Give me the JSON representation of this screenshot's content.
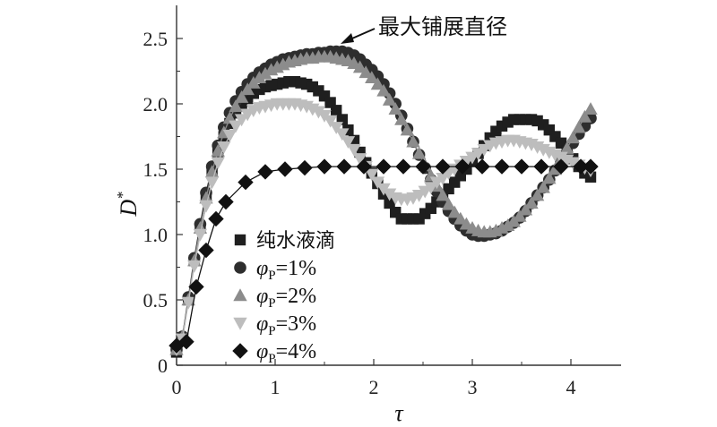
{
  "chart_data": {
    "type": "scatter",
    "xlabel": "τ",
    "ylabel_main": "D",
    "ylabel_sup": "*",
    "xlim": [
      0,
      4.5
    ],
    "ylim": [
      0,
      2.75
    ],
    "xticks": [
      "0",
      "1",
      "2",
      "3",
      "4"
    ],
    "yticks": [
      "0",
      "0.5",
      "1.0",
      "1.5",
      "2.0",
      "2.5"
    ],
    "grid": false,
    "legend_position": "lower-left",
    "annotation": "最大铺展直径",
    "series": [
      {
        "name": "纯水液滴",
        "marker": "square",
        "color": "#1f1f1f",
        "x": [
          0.0,
          0.06,
          0.12,
          0.18,
          0.24,
          0.3,
          0.36,
          0.42,
          0.48,
          0.54,
          0.6,
          0.66,
          0.72,
          0.78,
          0.84,
          0.9,
          0.96,
          1.02,
          1.08,
          1.14,
          1.2,
          1.26,
          1.32,
          1.38,
          1.44,
          1.5,
          1.56,
          1.62,
          1.68,
          1.74,
          1.8,
          1.86,
          1.92,
          1.98,
          2.04,
          2.1,
          2.16,
          2.22,
          2.28,
          2.34,
          2.4,
          2.46,
          2.52,
          2.58,
          2.64,
          2.7,
          2.76,
          2.82,
          2.88,
          2.94,
          3.0,
          3.06,
          3.12,
          3.18,
          3.24,
          3.3,
          3.36,
          3.42,
          3.48,
          3.54,
          3.6,
          3.66,
          3.72,
          3.78,
          3.84,
          3.9,
          3.96,
          4.02,
          4.08,
          4.14,
          4.2
        ],
        "y": [
          0.1,
          0.2,
          0.5,
          0.8,
          1.05,
          1.28,
          1.48,
          1.63,
          1.75,
          1.85,
          1.93,
          1.99,
          2.04,
          2.08,
          2.11,
          2.13,
          2.14,
          2.15,
          2.16,
          2.17,
          2.17,
          2.16,
          2.15,
          2.13,
          2.1,
          2.06,
          2.01,
          1.95,
          1.88,
          1.8,
          1.72,
          1.63,
          1.55,
          1.47,
          1.39,
          1.31,
          1.24,
          1.17,
          1.12,
          1.12,
          1.12,
          1.12,
          1.16,
          1.2,
          1.25,
          1.3,
          1.35,
          1.4,
          1.45,
          1.5,
          1.56,
          1.62,
          1.68,
          1.74,
          1.79,
          1.83,
          1.86,
          1.88,
          1.88,
          1.88,
          1.88,
          1.87,
          1.84,
          1.8,
          1.75,
          1.7,
          1.64,
          1.58,
          1.52,
          1.47,
          1.44
        ]
      },
      {
        "name": "φP=1%",
        "marker": "circle",
        "color": "#2e2e2e",
        "x": [
          0.0,
          0.06,
          0.12,
          0.18,
          0.24,
          0.3,
          0.36,
          0.42,
          0.48,
          0.54,
          0.6,
          0.66,
          0.72,
          0.78,
          0.84,
          0.9,
          0.96,
          1.02,
          1.08,
          1.14,
          1.2,
          1.26,
          1.32,
          1.38,
          1.44,
          1.5,
          1.56,
          1.62,
          1.68,
          1.74,
          1.8,
          1.86,
          1.92,
          1.98,
          2.04,
          2.1,
          2.16,
          2.22,
          2.28,
          2.34,
          2.4,
          2.46,
          2.52,
          2.58,
          2.64,
          2.7,
          2.76,
          2.82,
          2.88,
          2.94,
          3.0,
          3.06,
          3.12,
          3.18,
          3.24,
          3.3,
          3.36,
          3.42,
          3.48,
          3.54,
          3.6,
          3.66,
          3.72,
          3.78,
          3.84,
          3.9,
          3.96,
          4.02,
          4.08,
          4.14,
          4.2
        ],
        "y": [
          0.12,
          0.22,
          0.52,
          0.82,
          1.08,
          1.32,
          1.52,
          1.68,
          1.82,
          1.93,
          2.02,
          2.09,
          2.15,
          2.2,
          2.24,
          2.27,
          2.3,
          2.32,
          2.34,
          2.35,
          2.36,
          2.37,
          2.38,
          2.38,
          2.39,
          2.39,
          2.4,
          2.4,
          2.4,
          2.39,
          2.37,
          2.34,
          2.3,
          2.26,
          2.21,
          2.15,
          2.08,
          2.0,
          1.91,
          1.81,
          1.71,
          1.61,
          1.51,
          1.42,
          1.33,
          1.25,
          1.18,
          1.12,
          1.07,
          1.03,
          1.0,
          0.99,
          0.99,
          1.0,
          1.01,
          1.03,
          1.06,
          1.09,
          1.13,
          1.18,
          1.24,
          1.3,
          1.36,
          1.42,
          1.49,
          1.56,
          1.63,
          1.7,
          1.77,
          1.83,
          1.89
        ]
      },
      {
        "name": "φP=2%",
        "marker": "triangle-up",
        "color": "#8c8c8c",
        "x": [
          0.0,
          0.06,
          0.12,
          0.18,
          0.24,
          0.3,
          0.36,
          0.42,
          0.48,
          0.54,
          0.6,
          0.66,
          0.72,
          0.78,
          0.84,
          0.9,
          0.96,
          1.02,
          1.08,
          1.14,
          1.2,
          1.26,
          1.32,
          1.38,
          1.44,
          1.5,
          1.56,
          1.62,
          1.68,
          1.74,
          1.8,
          1.86,
          1.92,
          1.98,
          2.04,
          2.1,
          2.16,
          2.22,
          2.28,
          2.34,
          2.4,
          2.46,
          2.52,
          2.58,
          2.64,
          2.7,
          2.76,
          2.82,
          2.88,
          2.94,
          3.0,
          3.06,
          3.12,
          3.18,
          3.24,
          3.3,
          3.36,
          3.42,
          3.48,
          3.54,
          3.6,
          3.66,
          3.72,
          3.78,
          3.84,
          3.9,
          3.96,
          4.02,
          4.08,
          4.14,
          4.2
        ],
        "y": [
          0.12,
          0.22,
          0.5,
          0.8,
          1.05,
          1.28,
          1.48,
          1.64,
          1.78,
          1.89,
          1.98,
          2.05,
          2.11,
          2.16,
          2.2,
          2.23,
          2.26,
          2.28,
          2.3,
          2.32,
          2.33,
          2.34,
          2.35,
          2.35,
          2.36,
          2.36,
          2.36,
          2.35,
          2.34,
          2.33,
          2.31,
          2.28,
          2.24,
          2.2,
          2.15,
          2.1,
          2.03,
          1.96,
          1.88,
          1.8,
          1.71,
          1.62,
          1.53,
          1.45,
          1.37,
          1.3,
          1.23,
          1.17,
          1.12,
          1.08,
          1.05,
          1.03,
          1.02,
          1.02,
          1.03,
          1.05,
          1.07,
          1.1,
          1.14,
          1.19,
          1.24,
          1.3,
          1.36,
          1.43,
          1.5,
          1.58,
          1.66,
          1.74,
          1.82,
          1.9,
          1.96
        ]
      },
      {
        "name": "φP=3%",
        "marker": "triangle-down",
        "color": "#bdbdbd",
        "x": [
          0.0,
          0.06,
          0.12,
          0.18,
          0.24,
          0.3,
          0.36,
          0.42,
          0.48,
          0.54,
          0.6,
          0.66,
          0.72,
          0.78,
          0.84,
          0.9,
          0.96,
          1.02,
          1.08,
          1.14,
          1.2,
          1.26,
          1.32,
          1.38,
          1.44,
          1.5,
          1.56,
          1.62,
          1.68,
          1.74,
          1.8,
          1.86,
          1.92,
          1.98,
          2.04,
          2.1,
          2.16,
          2.22,
          2.28,
          2.34,
          2.4,
          2.46,
          2.52,
          2.58,
          2.64,
          2.7,
          2.76,
          2.82,
          2.88,
          2.94,
          3.0,
          3.06,
          3.12,
          3.18,
          3.24,
          3.3,
          3.36,
          3.42,
          3.48,
          3.54,
          3.6,
          3.66,
          3.72,
          3.78,
          3.84,
          3.9,
          3.96,
          4.02,
          4.08,
          4.14,
          4.2
        ],
        "y": [
          0.12,
          0.2,
          0.48,
          0.76,
          1.0,
          1.22,
          1.4,
          1.55,
          1.67,
          1.76,
          1.83,
          1.88,
          1.92,
          1.95,
          1.97,
          1.98,
          1.99,
          2.0,
          2.0,
          2.0,
          2.0,
          1.99,
          1.98,
          1.96,
          1.94,
          1.91,
          1.87,
          1.82,
          1.77,
          1.71,
          1.65,
          1.58,
          1.52,
          1.46,
          1.4,
          1.35,
          1.31,
          1.28,
          1.27,
          1.27,
          1.28,
          1.3,
          1.33,
          1.36,
          1.4,
          1.43,
          1.47,
          1.5,
          1.53,
          1.56,
          1.59,
          1.62,
          1.65,
          1.68,
          1.7,
          1.71,
          1.72,
          1.72,
          1.71,
          1.7,
          1.69,
          1.67,
          1.65,
          1.63,
          1.61,
          1.59,
          1.57,
          1.55,
          1.53,
          1.51,
          1.49
        ]
      },
      {
        "name": "φP=4%",
        "marker": "diamond",
        "color": "#111111",
        "x": [
          0.0,
          0.1,
          0.2,
          0.3,
          0.4,
          0.5,
          0.7,
          0.9,
          1.1,
          1.3,
          1.5,
          1.7,
          1.9,
          2.1,
          2.3,
          2.5,
          2.7,
          2.9,
          3.1,
          3.3,
          3.5,
          3.7,
          3.9,
          4.1,
          4.2
        ],
        "y": [
          0.15,
          0.18,
          0.6,
          0.88,
          1.12,
          1.25,
          1.4,
          1.48,
          1.5,
          1.51,
          1.52,
          1.52,
          1.52,
          1.52,
          1.52,
          1.52,
          1.52,
          1.52,
          1.52,
          1.52,
          1.52,
          1.52,
          1.52,
          1.52,
          1.52
        ]
      }
    ]
  }
}
